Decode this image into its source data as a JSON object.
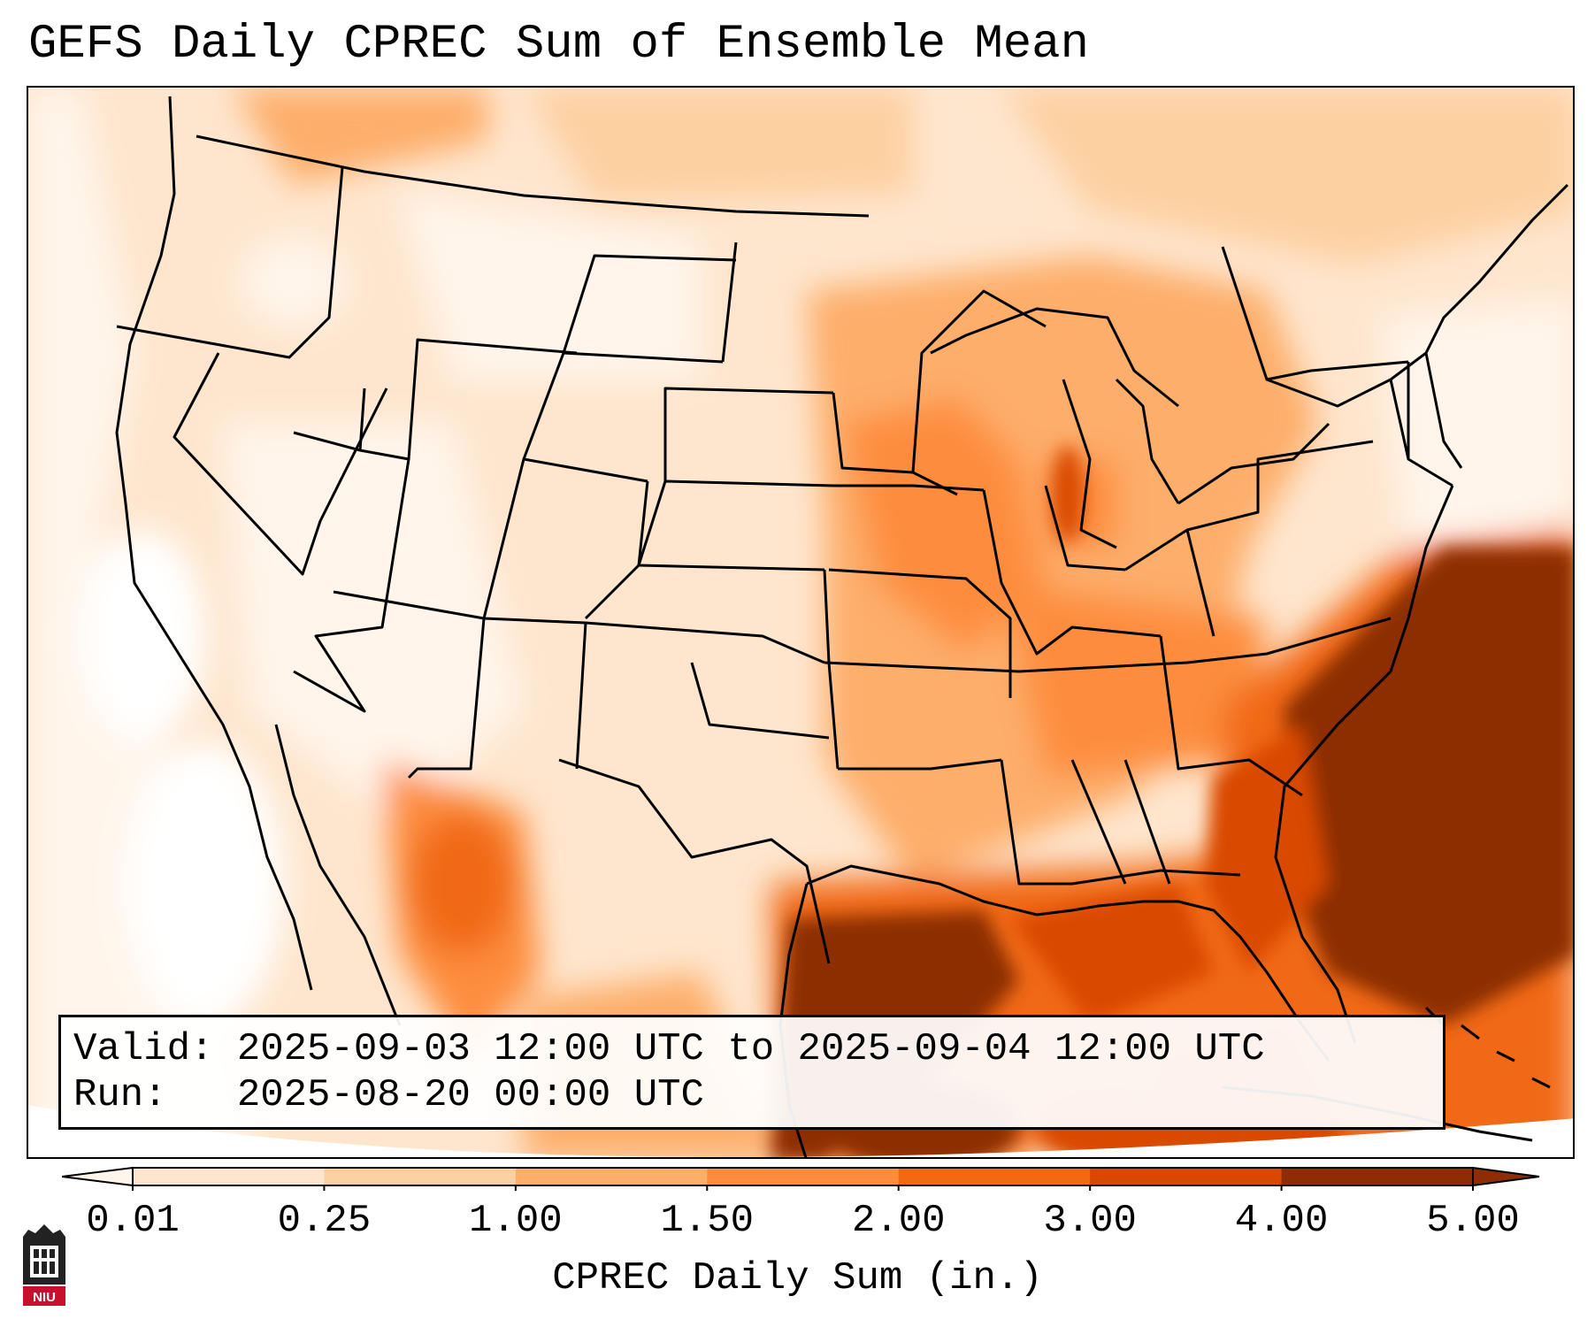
{
  "header": {
    "title": "GEFS Daily CPREC Sum of Ensemble Mean"
  },
  "info": {
    "valid_line": "Valid: 2025-09-03 12:00 UTC to 2025-09-04 12:00 UTC",
    "run_line": "Run:   2025-08-20 00:00 UTC"
  },
  "colorbar": {
    "label": "CPREC Daily Sum (in.)",
    "ticks": [
      "0.01",
      "0.25",
      "1.00",
      "1.50",
      "2.00",
      "3.00",
      "4.00",
      "5.00"
    ],
    "colors": [
      "#fff5eb",
      "#fee6ce",
      "#fdd0a2",
      "#fdae6b",
      "#fd8d3c",
      "#f16913",
      "#d94801",
      "#8c2d04"
    ],
    "extend": "both"
  },
  "map": {
    "region": "Contiguous United States",
    "field": "GEFS ensemble mean daily convective precipitation",
    "palette": {
      "ocean_far": "#fff5eb",
      "light": "#fee6ce",
      "low": "#fdd0a2",
      "mid": "#fdae6b",
      "moderate": "#fd8d3c",
      "high": "#f16913",
      "very_high": "#d94801",
      "extreme": "#8c2d04"
    }
  },
  "logo": {
    "name": "niu-logo",
    "text": "NIU"
  }
}
